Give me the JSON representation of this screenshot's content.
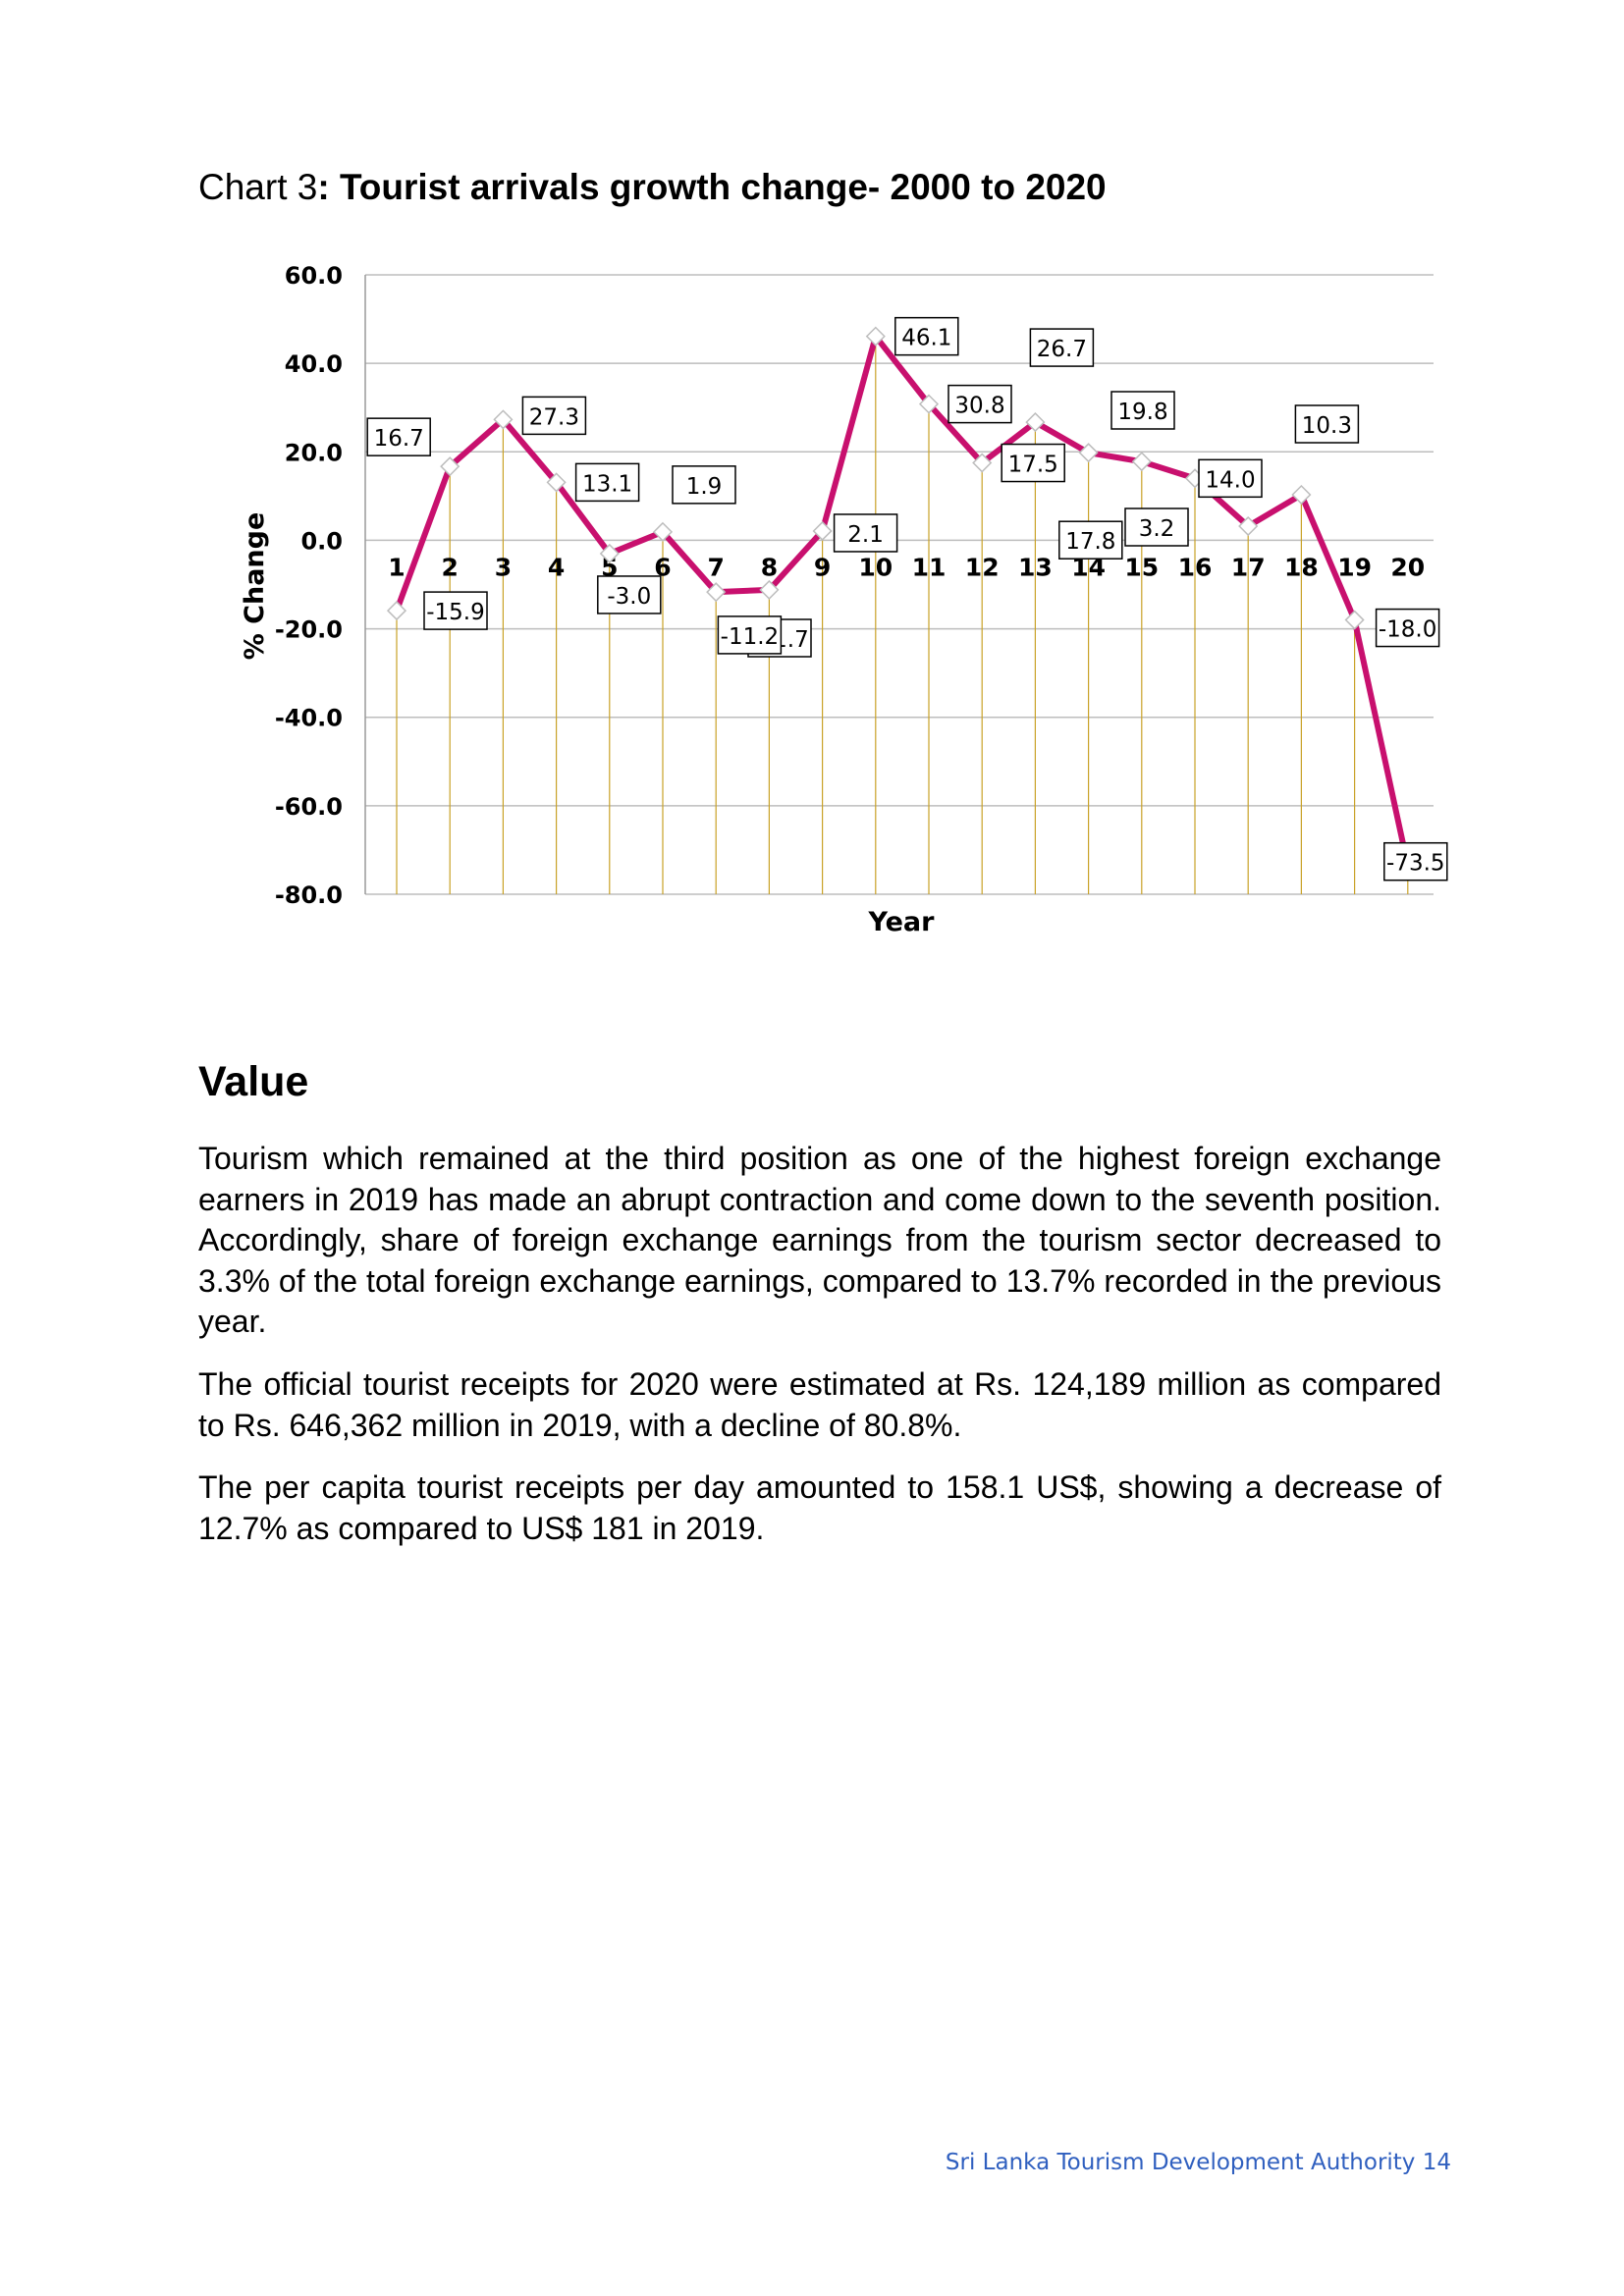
{
  "page": {
    "chart_title_prefix": "Chart 3",
    "chart_title_main": ": Tourist arrivals growth change- 2000 to 2020",
    "section_heading": "Value",
    "paragraphs": [
      "Tourism which remained at the third position as one of the highest foreign exchange earners in 2019 has made an abrupt contraction and come down to the seventh position. Accordingly, share of foreign exchange earnings from the tourism sector decreased to 3.3% of the total foreign exchange earnings, compared to 13.7% recorded in the previous year.",
      "The official tourist receipts for 2020 were estimated at Rs. 124,189 million as compared to Rs. 646,362 million in 2019, with a decline of 80.8%.",
      "The per capita tourist receipts per day amounted to 158.1 US$, showing a decrease of 12.7% as compared to US$ 181 in 2019."
    ],
    "footer": "Sri Lanka Tourism Development Authority 14"
  },
  "chart_data": {
    "type": "line",
    "title": "Chart 3: Tourist arrivals growth change- 2000 to 2020",
    "xlabel": "Year",
    "ylabel": "% Change",
    "x": [
      "1",
      "2",
      "3",
      "4",
      "5",
      "6",
      "7",
      "8",
      "9",
      "10",
      "11",
      "12",
      "13",
      "14",
      "15",
      "16",
      "17",
      "18",
      "19",
      "20"
    ],
    "series": [
      {
        "values": [
          -15.9,
          16.7,
          27.3,
          13.1,
          -3.0,
          1.9,
          -11.7,
          -11.2,
          2.1,
          46.1,
          30.8,
          17.5,
          26.7,
          19.8,
          17.8,
          14.0,
          3.2,
          10.3,
          -18.0,
          -73.5
        ]
      }
    ],
    "ylim": [
      -80,
      60
    ],
    "yticks": [
      "60.0",
      "40.0",
      "20.0",
      "0.0",
      "-20.0",
      "-40.0",
      "-60.0",
      "-80.0"
    ],
    "data_labels": [
      "-15.9",
      "16.7",
      "27.3",
      "13.1",
      "-3.0",
      "1.9",
      "-11.7",
      "-11.2",
      "2.1",
      "46.1",
      "30.8",
      "17.5",
      "26.7",
      "19.8",
      "17.8",
      "14.0",
      "3.2",
      "10.3",
      "-18.0",
      "-73.5"
    ],
    "grid": true,
    "colors": {
      "line": "#c8106e",
      "drop_lines": "#c9a227",
      "grid": "#bdbdbd",
      "marker_fill": "#ffffff"
    }
  }
}
